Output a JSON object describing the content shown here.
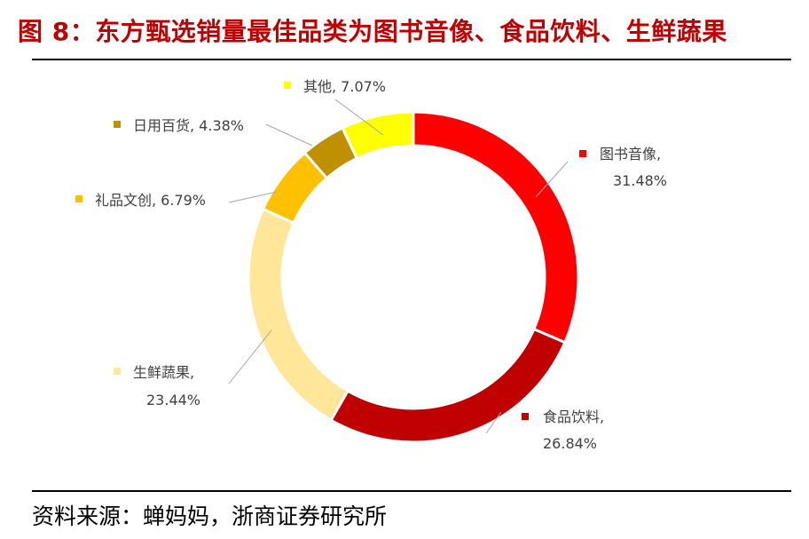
{
  "title": "图  8：东方甄选销量最佳品类为图书音像、食品饮料、生鲜蔬果",
  "source": "资料来源：蝉妈妈，浙商证券研究所",
  "chart_data": {
    "type": "pie",
    "style": "donut",
    "slices": [
      {
        "label": "图书音像",
        "value": 31.48,
        "display": "31.48%",
        "color": "#ff0000"
      },
      {
        "label": "食品饮料",
        "value": 26.84,
        "display": "26.84%",
        "color": "#c00000"
      },
      {
        "label": "生鲜蔬果",
        "value": 23.44,
        "display": "23.44%",
        "color": "#ffe699"
      },
      {
        "label": "礼品文创",
        "value": 6.79,
        "display": "6.79%",
        "color": "#ffc000"
      },
      {
        "label": "日用百货",
        "value": 4.38,
        "display": "4.38%",
        "color": "#bf9000"
      },
      {
        "label": "其他",
        "value": 7.07,
        "display": "7.07%",
        "color": "#ffff00"
      }
    ]
  }
}
